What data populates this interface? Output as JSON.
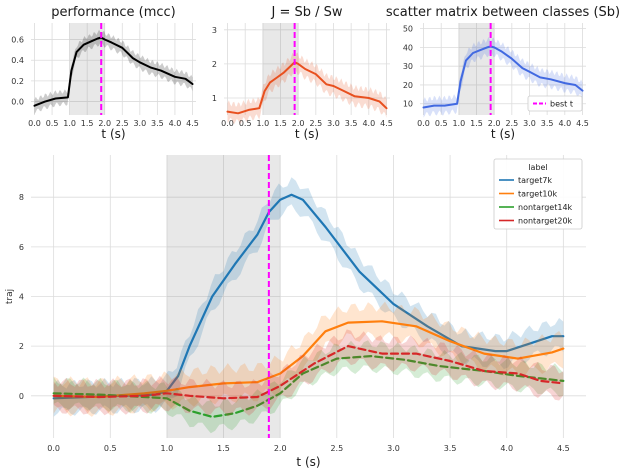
{
  "chart_data": [
    {
      "type": "line",
      "title": "performance (mcc)",
      "xlabel": "t (s)",
      "ylabel": "",
      "xlim": [
        -0.1,
        4.6
      ],
      "ylim": [
        -0.13,
        0.76
      ],
      "xticks": [
        "0.0",
        "0.5",
        "1.0",
        "1.5",
        "2.0",
        "2.5",
        "3.0",
        "3.5",
        "4.0",
        "4.5"
      ],
      "yticks": [
        "0.0",
        "0.2",
        "0.4",
        "0.6"
      ],
      "shaded_region": [
        1.0,
        2.0
      ],
      "best_t": 1.9,
      "grid": true,
      "series": [
        {
          "color": "#000000",
          "band": 0.06,
          "x": [
            0,
            0.3,
            0.6,
            0.95,
            1.05,
            1.2,
            1.4,
            1.6,
            1.8,
            1.9,
            2.0,
            2.2,
            2.5,
            2.8,
            3.0,
            3.3,
            3.6,
            4.0,
            4.3,
            4.5
          ],
          "y": [
            -0.04,
            0.0,
            0.03,
            0.04,
            0.3,
            0.48,
            0.55,
            0.58,
            0.61,
            0.62,
            0.6,
            0.57,
            0.52,
            0.42,
            0.38,
            0.33,
            0.3,
            0.24,
            0.22,
            0.17
          ]
        }
      ]
    },
    {
      "type": "line",
      "title": "J = Sb / Sw",
      "xlabel": "t (s)",
      "ylabel": "",
      "xlim": [
        -0.1,
        4.6
      ],
      "ylim": [
        0.5,
        3.2
      ],
      "xticks": [
        "0.0",
        "0.5",
        "1.0",
        "1.5",
        "2.0",
        "2.5",
        "3.0",
        "3.5",
        "4.0",
        "4.5"
      ],
      "yticks": [
        "1",
        "2",
        "3"
      ],
      "shaded_region": [
        1.0,
        2.0
      ],
      "best_t": 1.9,
      "grid": true,
      "series": [
        {
          "color": "#e8501f",
          "band": 0.25,
          "x": [
            0,
            0.3,
            0.6,
            0.9,
            1.05,
            1.2,
            1.4,
            1.6,
            1.8,
            1.9,
            2.0,
            2.2,
            2.5,
            2.8,
            3.0,
            3.3,
            3.6,
            4.0,
            4.3,
            4.5
          ],
          "y": [
            0.6,
            0.55,
            0.65,
            0.7,
            1.2,
            1.45,
            1.6,
            1.75,
            1.95,
            2.05,
            2.0,
            1.85,
            1.7,
            1.4,
            1.35,
            1.2,
            1.05,
            1.0,
            0.9,
            0.7
          ]
        }
      ]
    },
    {
      "type": "line",
      "title": "scatter matrix between classes (Sb)",
      "xlabel": "t (s)",
      "ylabel": "",
      "xlim": [
        -0.1,
        4.6
      ],
      "ylim": [
        4,
        53
      ],
      "xticks": [
        "0.0",
        "0.5",
        "1.0",
        "1.5",
        "2.0",
        "2.5",
        "3.0",
        "3.5",
        "4.0",
        "4.5"
      ],
      "yticks": [
        "10",
        "20",
        "30",
        "40",
        "50"
      ],
      "shaded_region": [
        1.0,
        2.0
      ],
      "best_t": 1.9,
      "grid": true,
      "legend": {
        "position": "bottom-right",
        "entries": [
          "best t"
        ]
      },
      "series": [
        {
          "color": "#4169e1",
          "band": 4,
          "x": [
            0,
            0.3,
            0.6,
            0.95,
            1.05,
            1.2,
            1.4,
            1.6,
            1.8,
            1.9,
            2.0,
            2.2,
            2.5,
            2.8,
            3.0,
            3.3,
            3.6,
            4.0,
            4.3,
            4.5
          ],
          "y": [
            8,
            9,
            9,
            10,
            22,
            33,
            37,
            38.5,
            40,
            40.5,
            40,
            38,
            34,
            29,
            27,
            24,
            23,
            21,
            20,
            17
          ]
        }
      ]
    },
    {
      "type": "line",
      "title": "",
      "xlabel": "t (s)",
      "ylabel": "traj",
      "xlim": [
        -0.2,
        4.7
      ],
      "ylim": [
        -1.7,
        9.7
      ],
      "xticks": [
        "0.0",
        "0.5",
        "1.0",
        "1.5",
        "2.0",
        "2.5",
        "3.0",
        "3.5",
        "4.0",
        "4.5"
      ],
      "yticks": [
        "0",
        "2",
        "4",
        "6",
        "8"
      ],
      "shaded_region": [
        1.0,
        2.0
      ],
      "best_t": 1.9,
      "grid": true,
      "legend": {
        "position": "top-right",
        "title": "label",
        "entries": [
          "target7k",
          "target10k",
          "nontarget14k",
          "nontarget20k"
        ]
      },
      "series": [
        {
          "name": "target7k",
          "color": "#1f77b4",
          "dash": "solid",
          "band": 0.55,
          "x": [
            0,
            0.3,
            0.6,
            0.9,
            1.0,
            1.1,
            1.2,
            1.4,
            1.6,
            1.8,
            1.9,
            2.0,
            2.1,
            2.2,
            2.4,
            2.7,
            3.0,
            3.3,
            3.6,
            3.9,
            4.0,
            4.2,
            4.4,
            4.5
          ],
          "y": [
            -0.1,
            -0.05,
            0.0,
            0.05,
            0.2,
            0.8,
            2.0,
            4.0,
            5.3,
            6.5,
            7.4,
            7.9,
            8.1,
            7.9,
            6.8,
            5.0,
            3.7,
            2.8,
            2.0,
            1.8,
            1.8,
            2.1,
            2.4,
            2.4
          ]
        },
        {
          "name": "target10k",
          "color": "#ff7f0e",
          "dash": "solid",
          "band": 0.6,
          "x": [
            0,
            0.4,
            0.8,
            1.0,
            1.2,
            1.5,
            1.8,
            2.0,
            2.2,
            2.4,
            2.6,
            2.9,
            3.2,
            3.5,
            3.8,
            4.1,
            4.4,
            4.5
          ],
          "y": [
            0.0,
            -0.05,
            0.1,
            0.2,
            0.35,
            0.5,
            0.55,
            0.9,
            1.6,
            2.6,
            2.95,
            3.0,
            2.8,
            2.2,
            1.7,
            1.5,
            1.75,
            1.9
          ]
        },
        {
          "name": "nontarget14k",
          "color": "#2ca02c",
          "dash": "dashed",
          "band": 0.5,
          "x": [
            0,
            0.4,
            0.8,
            1.0,
            1.2,
            1.4,
            1.6,
            1.8,
            2.0,
            2.2,
            2.5,
            2.8,
            3.1,
            3.4,
            3.8,
            4.1,
            4.3,
            4.5
          ],
          "y": [
            0.1,
            0.05,
            -0.05,
            -0.1,
            -0.6,
            -0.85,
            -0.7,
            -0.4,
            0.1,
            0.9,
            1.5,
            1.6,
            1.45,
            1.2,
            1.0,
            0.8,
            0.7,
            0.6
          ]
        },
        {
          "name": "nontarget20k",
          "color": "#d62728",
          "dash": "dashed",
          "band": 0.55,
          "x": [
            0,
            0.4,
            0.8,
            1.0,
            1.2,
            1.5,
            1.8,
            2.0,
            2.3,
            2.6,
            2.9,
            3.2,
            3.5,
            3.8,
            4.1,
            4.3,
            4.5
          ],
          "y": [
            0.0,
            -0.05,
            0.0,
            0.1,
            0.0,
            -0.1,
            -0.05,
            0.4,
            1.3,
            2.0,
            1.7,
            1.7,
            1.4,
            1.0,
            0.9,
            0.6,
            0.5
          ]
        }
      ]
    }
  ]
}
